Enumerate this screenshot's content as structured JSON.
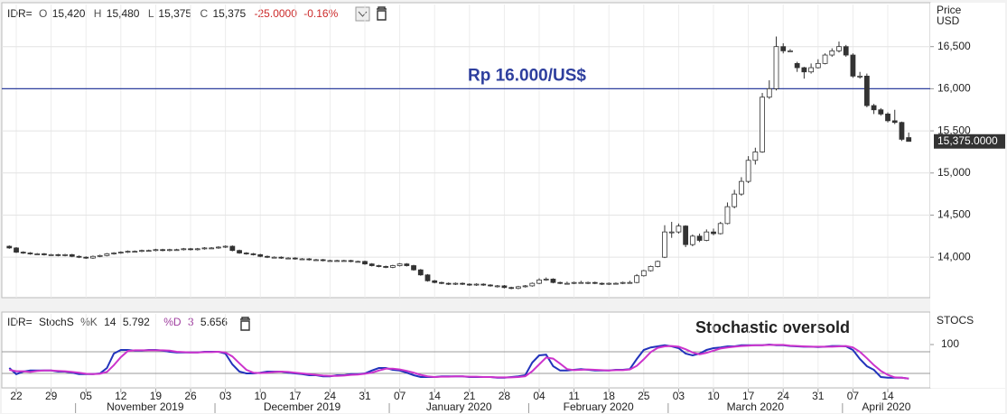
{
  "chart_data": [
    {
      "type": "candlestick",
      "header": {
        "symbol": "IDR=",
        "ohlc": [
          {
            "name": "O",
            "text": "15,420"
          },
          {
            "name": "H",
            "text": "15,480"
          },
          {
            "name": "L",
            "text": "15,375"
          },
          {
            "name": "C",
            "text": "15,375"
          }
        ],
        "change": "-25.0000",
        "change_pct": "-0.16%"
      },
      "y_axis_label": [
        "Price",
        "USD"
      ],
      "categories": [
        null,
        "22",
        null,
        null,
        null,
        null,
        "29",
        null,
        null,
        null,
        null,
        "05",
        null,
        null,
        null,
        null,
        "12",
        null,
        null,
        null,
        null,
        "19",
        null,
        null,
        null,
        null,
        "26",
        null,
        null,
        null,
        null,
        "03",
        null,
        null,
        null,
        null,
        "10",
        null,
        null,
        null,
        null,
        "17",
        null,
        null,
        null,
        null,
        "24",
        null,
        null,
        null,
        null,
        "31",
        null,
        null,
        null,
        null,
        "07",
        null,
        null,
        null,
        null,
        "14",
        null,
        null,
        null,
        null,
        "21",
        null,
        null,
        null,
        null,
        "28",
        null,
        null,
        null,
        null,
        "04",
        null,
        null,
        null,
        null,
        "11",
        null,
        null,
        null,
        null,
        "18",
        null,
        null,
        null,
        null,
        "25",
        null,
        null,
        null,
        null,
        "03",
        null,
        null,
        null,
        null,
        "10",
        null,
        null,
        null,
        null,
        "17",
        null,
        null,
        null,
        null,
        "24",
        null,
        null,
        null,
        null,
        "31",
        null,
        null,
        null,
        null,
        "07",
        null,
        null,
        null,
        null,
        "14",
        null,
        null,
        null
      ],
      "months": [
        "November 2019",
        "December 2019",
        "January 2020",
        "February 2020",
        "March 2020",
        "April 2020"
      ],
      "open": [
        14130,
        14110,
        14060,
        14050,
        14040,
        14040,
        14030,
        14030,
        14020,
        14030,
        14010,
        14000,
        13990,
        14010,
        14020,
        14040,
        14050,
        14060,
        14070,
        14070,
        14080,
        14080,
        14090,
        14080,
        14090,
        14090,
        14100,
        14090,
        14100,
        14110,
        14110,
        14120,
        14130,
        14080,
        14050,
        14040,
        14030,
        14010,
        14000,
        14000,
        13990,
        13990,
        13980,
        13980,
        13970,
        13970,
        13960,
        13960,
        13960,
        13960,
        13950,
        13950,
        13920,
        13900,
        13890,
        13880,
        13900,
        13920,
        13900,
        13850,
        13790,
        13720,
        13700,
        13690,
        13680,
        13690,
        13680,
        13670,
        13680,
        13670,
        13660,
        13660,
        13640,
        13630,
        13650,
        13660,
        13690,
        13730,
        13740,
        13700,
        13690,
        13690,
        13700,
        13700,
        13700,
        13690,
        13680,
        13690,
        13690,
        13700,
        13700,
        13780,
        13840,
        13890,
        14000,
        14300,
        14300,
        14370,
        14150,
        14250,
        14200,
        14300,
        14280,
        14400,
        14600,
        14750,
        14900,
        15150,
        15250,
        15900,
        16000,
        16500,
        16450,
        16300,
        16250,
        16200,
        16250,
        16300,
        16400,
        16450,
        16500,
        16400,
        16150,
        16150,
        15800,
        15750,
        15700,
        15620,
        15600,
        15420
      ],
      "high": [
        14140,
        14120,
        14070,
        14060,
        14050,
        14050,
        14040,
        14040,
        14040,
        14040,
        14020,
        14010,
        14020,
        14030,
        14050,
        14060,
        14070,
        14080,
        14080,
        14090,
        14090,
        14100,
        14100,
        14100,
        14100,
        14110,
        14110,
        14110,
        14120,
        14120,
        14130,
        14140,
        14140,
        14090,
        14060,
        14050,
        14040,
        14020,
        14010,
        14010,
        14000,
        14000,
        13990,
        13990,
        13980,
        13980,
        13970,
        13970,
        13970,
        13970,
        13960,
        13960,
        13930,
        13910,
        13900,
        13910,
        13930,
        13930,
        13910,
        13860,
        13800,
        13730,
        13710,
        13700,
        13700,
        13700,
        13690,
        13690,
        13690,
        13680,
        13670,
        13670,
        13650,
        13660,
        13670,
        13700,
        13750,
        13760,
        13750,
        13710,
        13710,
        13710,
        13720,
        13710,
        13710,
        13700,
        13700,
        13700,
        13710,
        13720,
        13800,
        13850,
        13900,
        13960,
        14380,
        14420,
        14400,
        14380,
        14270,
        14280,
        14330,
        14340,
        14420,
        14650,
        14800,
        14950,
        15200,
        15300,
        15950,
        16100,
        16620,
        16540,
        16470,
        16320,
        16260,
        16300,
        16350,
        16420,
        16480,
        16560,
        16520,
        16420,
        16200,
        16180,
        15820,
        15770,
        15720,
        15750,
        15610,
        15480
      ],
      "low": [
        14100,
        14050,
        14040,
        14030,
        14030,
        14020,
        14020,
        14010,
        14010,
        14000,
        13990,
        13980,
        13980,
        14000,
        14010,
        14030,
        14040,
        14050,
        14060,
        14060,
        14070,
        14070,
        14070,
        14070,
        14080,
        14080,
        14080,
        14080,
        14090,
        14100,
        14100,
        14110,
        14070,
        14040,
        14030,
        14020,
        14000,
        13990,
        13990,
        13980,
        13980,
        13970,
        13970,
        13960,
        13960,
        13950,
        13950,
        13950,
        13950,
        13940,
        13940,
        13910,
        13890,
        13880,
        13870,
        13870,
        13890,
        13890,
        13840,
        13780,
        13710,
        13690,
        13680,
        13670,
        13670,
        13670,
        13660,
        13660,
        13660,
        13650,
        13640,
        13630,
        13620,
        13620,
        13640,
        13650,
        13680,
        13720,
        13690,
        13680,
        13680,
        13680,
        13690,
        13680,
        13680,
        13670,
        13670,
        13680,
        13680,
        13690,
        13690,
        13770,
        13830,
        13880,
        13990,
        14230,
        14280,
        14120,
        14130,
        14180,
        14190,
        14260,
        14270,
        14390,
        14580,
        14730,
        14880,
        15100,
        15240,
        15880,
        15980,
        16420,
        16440,
        16200,
        16120,
        16180,
        16240,
        16290,
        16380,
        16430,
        16380,
        16130,
        16120,
        15780,
        15700,
        15680,
        15600,
        15580,
        15380,
        15375
      ],
      "close": [
        14110,
        14060,
        14050,
        14040,
        14040,
        14030,
        14030,
        14020,
        14030,
        14010,
        14000,
        13990,
        14010,
        14020,
        14040,
        14050,
        14060,
        14070,
        14070,
        14080,
        14080,
        14090,
        14080,
        14090,
        14090,
        14100,
        14090,
        14100,
        14110,
        14110,
        14120,
        14130,
        14080,
        14050,
        14040,
        14030,
        14010,
        14000,
        14000,
        13990,
        13990,
        13980,
        13980,
        13970,
        13970,
        13960,
        13960,
        13960,
        13960,
        13950,
        13950,
        13920,
        13900,
        13890,
        13880,
        13900,
        13920,
        13900,
        13850,
        13790,
        13720,
        13700,
        13690,
        13680,
        13690,
        13680,
        13670,
        13680,
        13670,
        13660,
        13660,
        13640,
        13630,
        13650,
        13660,
        13690,
        13730,
        13740,
        13700,
        13690,
        13690,
        13700,
        13700,
        13700,
        13690,
        13680,
        13690,
        13690,
        13700,
        13700,
        13780,
        13840,
        13890,
        13950,
        14300,
        14300,
        14370,
        14150,
        14250,
        14200,
        14300,
        14280,
        14400,
        14600,
        14750,
        14900,
        15150,
        15250,
        15900,
        16000,
        16500,
        16450,
        16450,
        16250,
        16200,
        16250,
        16300,
        16400,
        16450,
        16500,
        16400,
        16150,
        16150,
        15800,
        15750,
        15700,
        15620,
        15600,
        15400,
        15375
      ],
      "up_color": "#ffffff",
      "down_color": "#333333",
      "ylim": [
        13520,
        17000
      ],
      "yticks": [
        {
          "value": 14000,
          "label": "14,000"
        },
        {
          "value": 14500,
          "label": "14,500"
        },
        {
          "value": 15000,
          "label": "15,000"
        },
        {
          "value": 15500,
          "label": "15,500"
        },
        {
          "value": 16000,
          "label": "16,000"
        },
        {
          "value": 16500,
          "label": "16,500"
        }
      ],
      "last_price": {
        "value": 15375,
        "label": "15,375.0000"
      },
      "annotations": [
        {
          "text": "Rp 16.000/US$",
          "value": 16000,
          "color": "#2e3f9e"
        }
      ],
      "grid": true
    },
    {
      "type": "line",
      "header": {
        "symbol": "IDR=",
        "indicator": "StochS"
      },
      "k_period": 14,
      "d_period": 3,
      "y_axis_label": "STOCS",
      "series": [
        {
          "name": "%K",
          "color": "#2233bb",
          "values": [
            35,
            18,
            25,
            28,
            28,
            28,
            28,
            25,
            25,
            22,
            18,
            18,
            18,
            20,
            35,
            75,
            85,
            85,
            83,
            83,
            85,
            85,
            83,
            80,
            78,
            78,
            78,
            78,
            80,
            80,
            80,
            75,
            45,
            25,
            20,
            20,
            22,
            25,
            25,
            25,
            22,
            20,
            18,
            15,
            15,
            12,
            12,
            15,
            15,
            18,
            18,
            20,
            28,
            35,
            35,
            30,
            28,
            22,
            15,
            10,
            10,
            10,
            12,
            12,
            12,
            12,
            10,
            10,
            10,
            10,
            8,
            8,
            10,
            12,
            15,
            50,
            70,
            72,
            40,
            28,
            28,
            30,
            32,
            30,
            28,
            28,
            28,
            30,
            30,
            32,
            60,
            85,
            92,
            95,
            98,
            95,
            90,
            75,
            70,
            75,
            85,
            90,
            92,
            95,
            95,
            98,
            98,
            98,
            98,
            100,
            98,
            98,
            96,
            95,
            94,
            94,
            93,
            94,
            96,
            96,
            95,
            85,
            60,
            40,
            30,
            10,
            8,
            8,
            8,
            5.792
          ]
        },
        {
          "name": "%D",
          "color": "#cc33cc",
          "values": [
            30,
            26,
            26,
            24,
            27,
            28,
            28,
            27,
            26,
            24,
            22,
            19,
            18,
            19,
            24,
            43,
            65,
            82,
            84,
            84,
            84,
            84,
            84,
            83,
            80,
            79,
            78,
            78,
            79,
            79,
            80,
            78,
            67,
            48,
            30,
            22,
            21,
            22,
            24,
            25,
            24,
            22,
            20,
            18,
            16,
            14,
            13,
            13,
            14,
            16,
            17,
            19,
            22,
            28,
            33,
            33,
            31,
            27,
            22,
            16,
            12,
            10,
            11,
            11,
            12,
            12,
            11,
            11,
            10,
            10,
            9,
            9,
            9,
            10,
            12,
            26,
            45,
            64,
            61,
            47,
            32,
            29,
            30,
            31,
            30,
            29,
            28,
            29,
            29,
            31,
            41,
            59,
            79,
            91,
            95,
            96,
            94,
            87,
            78,
            73,
            77,
            83,
            89,
            92,
            94,
            96,
            97,
            98,
            98,
            99,
            99,
            99,
            97,
            96,
            95,
            94,
            94,
            94,
            94,
            95,
            96,
            92,
            80,
            62,
            43,
            27,
            16,
            9,
            8,
            5.656
          ]
        }
      ],
      "levels": [
        20,
        80
      ],
      "ylim": [
        -20,
        185
      ],
      "yticks": [
        100
      ],
      "annotation": "Stochastic oversold"
    }
  ]
}
